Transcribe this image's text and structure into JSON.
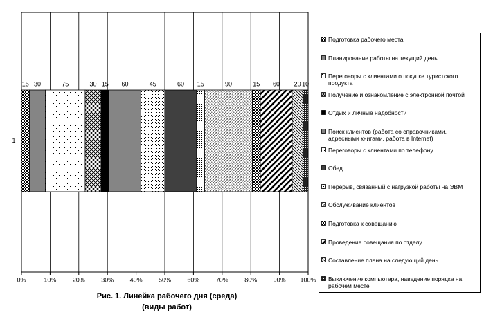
{
  "chart_data": {
    "type": "bar",
    "stack": "percent",
    "orientation": "horizontal",
    "title": "Рис. 1. Линейка рабочего дня (среда)",
    "subtitle": "(виды работ)",
    "categories": [
      "1"
    ],
    "xlim": [
      0,
      100
    ],
    "xticks": [
      {
        "value": 0,
        "label": "0%"
      },
      {
        "value": 10,
        "label": "10%"
      },
      {
        "value": 20,
        "label": "20%"
      },
      {
        "value": 30,
        "label": "30%"
      },
      {
        "value": 40,
        "label": "40%"
      },
      {
        "value": 50,
        "label": "50%"
      },
      {
        "value": 60,
        "label": "60%"
      },
      {
        "value": 70,
        "label": "70%"
      },
      {
        "value": 80,
        "label": "80%"
      },
      {
        "value": 90,
        "label": "90%"
      },
      {
        "value": 100,
        "label": "100%"
      }
    ],
    "grid": true,
    "legend": "right",
    "series": [
      {
        "name": "Подготовка рабочего места",
        "pattern": "checker",
        "values": [
          15
        ]
      },
      {
        "name": "Планирование работы на текущий день",
        "pattern": "gray",
        "values": [
          30
        ]
      },
      {
        "name": "Переговоры с клиентами о покупке туристского продукта",
        "pattern": "dots",
        "values": [
          75
        ]
      },
      {
        "name": "Получение и ознакомление с электронной почтой",
        "pattern": "crosshatch",
        "values": [
          30
        ]
      },
      {
        "name": "Отдых и личные надобности",
        "pattern": "black",
        "values": [
          15
        ]
      },
      {
        "name": "Поиск клиентов (работа со справочниками, адресными книгами, работа в Internet)",
        "pattern": "gray",
        "values": [
          60
        ]
      },
      {
        "name": "Переговоры с клиентами по телефону",
        "pattern": "dots2",
        "values": [
          45
        ]
      },
      {
        "name": "Обед",
        "pattern": "dark",
        "values": [
          60
        ]
      },
      {
        "name": "Перерыв, связанный с нагрузкой работы на ЭВМ",
        "pattern": "dots3",
        "values": [
          15
        ]
      },
      {
        "name": "Обслуживание клиентов",
        "pattern": "diagcross",
        "values": [
          90
        ]
      },
      {
        "name": "Подготовка к совещанию",
        "pattern": "checker",
        "values": [
          15
        ]
      },
      {
        "name": "Проведение совещания по отделу",
        "pattern": "diag",
        "values": [
          60
        ]
      },
      {
        "name": "Составление плана на следующий день",
        "pattern": "diagthin",
        "values": [
          20
        ]
      },
      {
        "name": "Выключение компьютера, наведение порядка на рабочем месте",
        "pattern": "checker2",
        "values": [
          10
        ]
      }
    ]
  }
}
